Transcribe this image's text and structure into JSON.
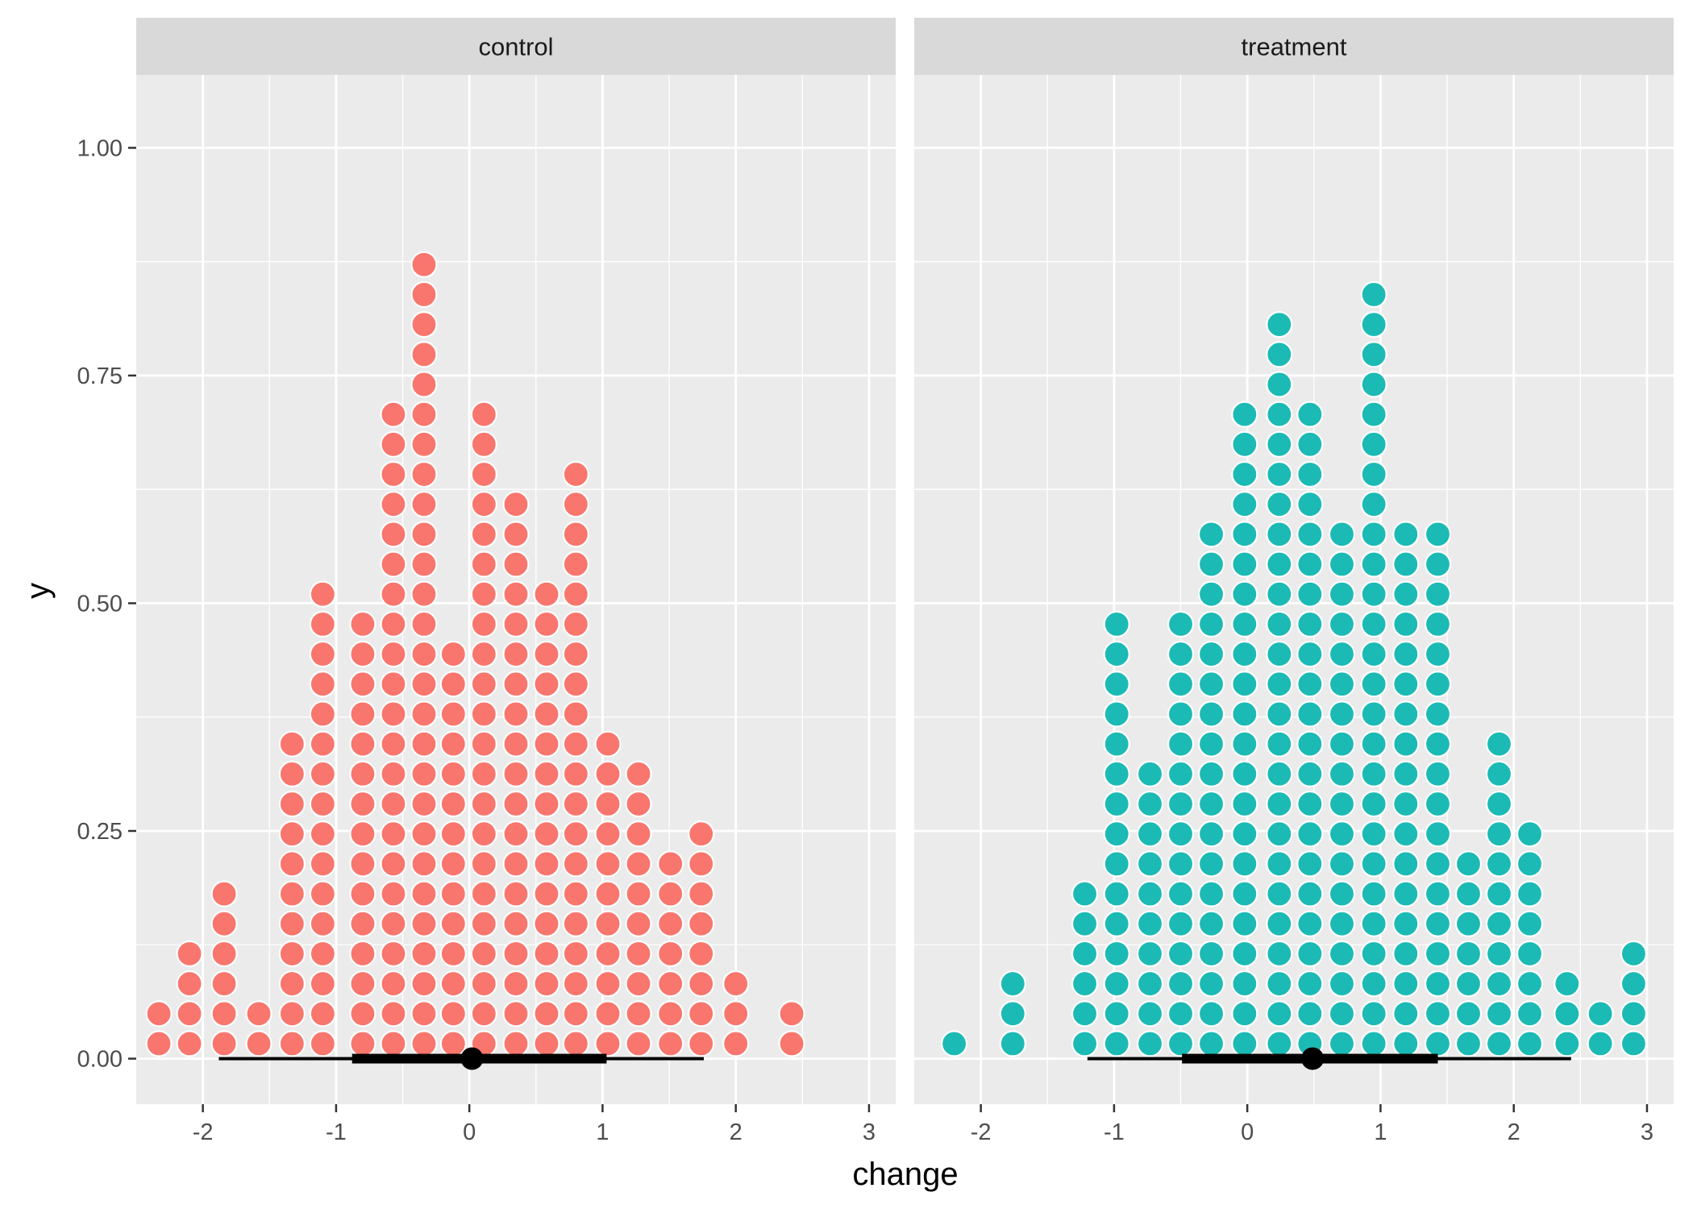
{
  "chart_data": {
    "type": "dotplot",
    "xlabel": "change",
    "ylabel": "y",
    "xlim": [
      -2.5,
      3.2
    ],
    "ylim": [
      -0.05,
      1.08
    ],
    "x_ticks": [
      "-2",
      "-1",
      "0",
      "1",
      "2",
      "3"
    ],
    "y_ticks": [
      "0.00",
      "0.25",
      "0.50",
      "0.75",
      "1.00"
    ],
    "dot_step": 0.0329,
    "panels": [
      {
        "name": "control",
        "color": "#f8766d",
        "bins": [
          [
            -2.33,
            2
          ],
          [
            -2.1,
            4
          ],
          [
            -1.84,
            6
          ],
          [
            -1.58,
            2
          ],
          [
            -1.33,
            11
          ],
          [
            -1.1,
            16
          ],
          [
            -0.8,
            15
          ],
          [
            -0.57,
            22
          ],
          [
            -0.34,
            27
          ],
          [
            -0.12,
            14
          ],
          [
            0.11,
            22
          ],
          [
            0.35,
            19
          ],
          [
            0.58,
            16
          ],
          [
            0.8,
            20
          ],
          [
            1.04,
            11
          ],
          [
            1.27,
            10
          ],
          [
            1.51,
            7
          ],
          [
            1.74,
            8
          ],
          [
            2.0,
            3
          ],
          [
            2.42,
            2
          ]
        ],
        "interval": {
          "point": 0.02,
          "inner": [
            -0.88,
            1.03
          ],
          "outer": [
            -1.88,
            1.76
          ]
        }
      },
      {
        "name": "treatment",
        "color": "#1cbab4",
        "bins": [
          [
            -2.2,
            1
          ],
          [
            -1.76,
            3
          ],
          [
            -1.22,
            6
          ],
          [
            -0.98,
            15
          ],
          [
            -0.73,
            10
          ],
          [
            -0.5,
            15
          ],
          [
            -0.27,
            18
          ],
          [
            -0.02,
            22
          ],
          [
            0.24,
            25
          ],
          [
            0.47,
            22
          ],
          [
            0.71,
            18
          ],
          [
            0.95,
            26
          ],
          [
            1.19,
            18
          ],
          [
            1.43,
            18
          ],
          [
            1.66,
            7
          ],
          [
            1.89,
            11
          ],
          [
            2.12,
            8
          ],
          [
            2.4,
            3
          ],
          [
            2.65,
            2
          ],
          [
            2.9,
            4
          ]
        ],
        "interval": {
          "point": 0.49,
          "inner": [
            -0.49,
            1.43
          ],
          "outer": [
            -1.2,
            2.43
          ]
        }
      }
    ]
  }
}
